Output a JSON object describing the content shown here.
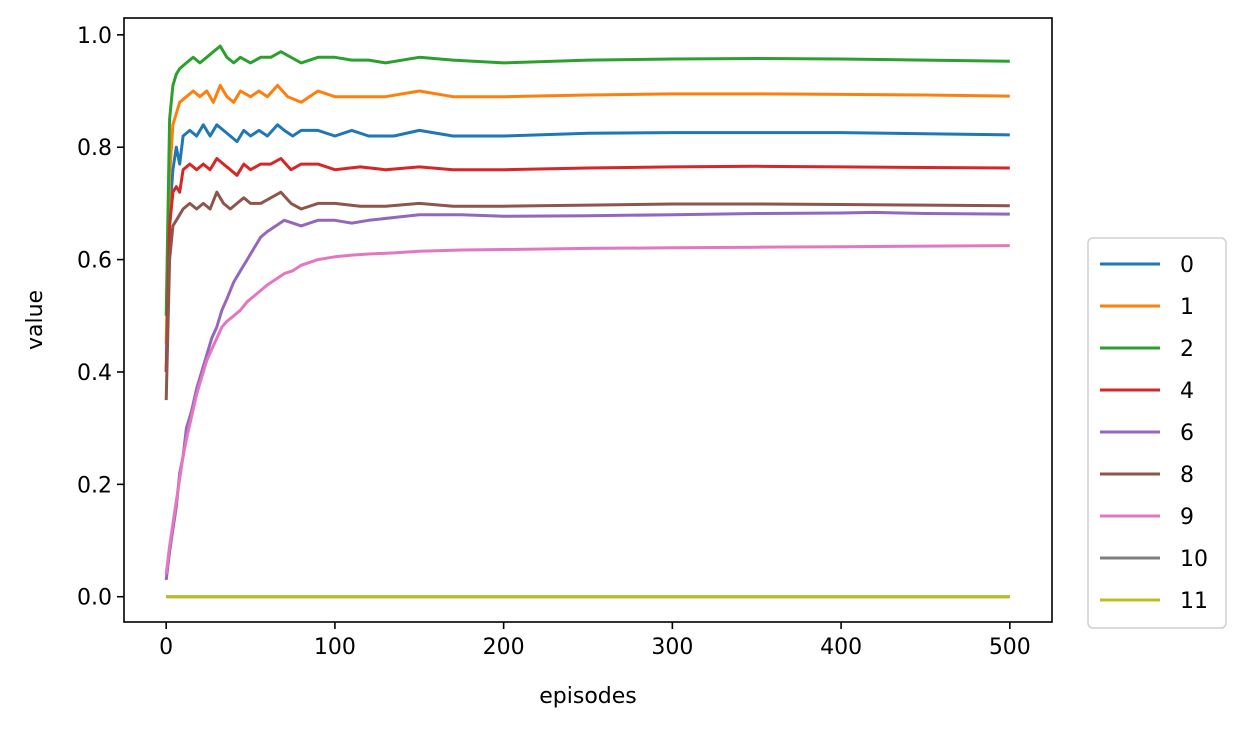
{
  "chart_data": {
    "type": "line",
    "title": "",
    "xlabel": "episodes",
    "ylabel": "value",
    "xlim": [
      -25,
      525
    ],
    "ylim": [
      -0.045,
      1.03
    ],
    "xticks": [
      0,
      100,
      200,
      300,
      400,
      500
    ],
    "yticks": [
      0.0,
      0.2,
      0.4,
      0.6,
      0.8,
      1.0
    ],
    "xtick_labels": [
      "0",
      "100",
      "200",
      "300",
      "400",
      "500"
    ],
    "ytick_labels": [
      "0.0",
      "0.2",
      "0.4",
      "0.6",
      "0.8",
      "1.0"
    ],
    "grid": false,
    "legend_position": "right-outside",
    "series": [
      {
        "name": "0",
        "color": "#1f77b4",
        "points": [
          [
            0,
            0.4
          ],
          [
            2,
            0.68
          ],
          [
            4,
            0.76
          ],
          [
            6,
            0.8
          ],
          [
            8,
            0.77
          ],
          [
            10,
            0.82
          ],
          [
            14,
            0.83
          ],
          [
            18,
            0.82
          ],
          [
            22,
            0.84
          ],
          [
            26,
            0.82
          ],
          [
            30,
            0.84
          ],
          [
            34,
            0.83
          ],
          [
            38,
            0.82
          ],
          [
            42,
            0.81
          ],
          [
            46,
            0.83
          ],
          [
            50,
            0.82
          ],
          [
            55,
            0.83
          ],
          [
            60,
            0.82
          ],
          [
            66,
            0.84
          ],
          [
            70,
            0.83
          ],
          [
            75,
            0.82
          ],
          [
            80,
            0.83
          ],
          [
            90,
            0.83
          ],
          [
            100,
            0.82
          ],
          [
            110,
            0.83
          ],
          [
            120,
            0.82
          ],
          [
            135,
            0.82
          ],
          [
            150,
            0.83
          ],
          [
            170,
            0.82
          ],
          [
            200,
            0.82
          ],
          [
            250,
            0.825
          ],
          [
            300,
            0.826
          ],
          [
            350,
            0.826
          ],
          [
            400,
            0.826
          ],
          [
            450,
            0.824
          ],
          [
            500,
            0.822
          ]
        ]
      },
      {
        "name": "1",
        "color": "#ff7f0e",
        "points": [
          [
            0,
            0.45
          ],
          [
            2,
            0.75
          ],
          [
            4,
            0.84
          ],
          [
            6,
            0.86
          ],
          [
            8,
            0.88
          ],
          [
            12,
            0.89
          ],
          [
            16,
            0.9
          ],
          [
            20,
            0.89
          ],
          [
            24,
            0.9
          ],
          [
            28,
            0.88
          ],
          [
            32,
            0.91
          ],
          [
            36,
            0.89
          ],
          [
            40,
            0.88
          ],
          [
            44,
            0.9
          ],
          [
            50,
            0.89
          ],
          [
            55,
            0.9
          ],
          [
            60,
            0.89
          ],
          [
            66,
            0.91
          ],
          [
            72,
            0.89
          ],
          [
            80,
            0.88
          ],
          [
            90,
            0.9
          ],
          [
            100,
            0.89
          ],
          [
            115,
            0.89
          ],
          [
            130,
            0.89
          ],
          [
            150,
            0.9
          ],
          [
            170,
            0.89
          ],
          [
            200,
            0.89
          ],
          [
            250,
            0.893
          ],
          [
            300,
            0.895
          ],
          [
            350,
            0.895
          ],
          [
            400,
            0.894
          ],
          [
            450,
            0.893
          ],
          [
            500,
            0.891
          ]
        ]
      },
      {
        "name": "2",
        "color": "#2ca02c",
        "points": [
          [
            0,
            0.5
          ],
          [
            2,
            0.85
          ],
          [
            4,
            0.91
          ],
          [
            6,
            0.93
          ],
          [
            8,
            0.94
          ],
          [
            12,
            0.95
          ],
          [
            16,
            0.96
          ],
          [
            20,
            0.95
          ],
          [
            24,
            0.96
          ],
          [
            28,
            0.97
          ],
          [
            32,
            0.98
          ],
          [
            36,
            0.96
          ],
          [
            40,
            0.95
          ],
          [
            44,
            0.96
          ],
          [
            50,
            0.95
          ],
          [
            56,
            0.96
          ],
          [
            62,
            0.96
          ],
          [
            68,
            0.97
          ],
          [
            74,
            0.96
          ],
          [
            80,
            0.95
          ],
          [
            90,
            0.96
          ],
          [
            100,
            0.96
          ],
          [
            110,
            0.955
          ],
          [
            120,
            0.955
          ],
          [
            130,
            0.95
          ],
          [
            150,
            0.96
          ],
          [
            170,
            0.955
          ],
          [
            200,
            0.95
          ],
          [
            250,
            0.955
          ],
          [
            300,
            0.957
          ],
          [
            350,
            0.958
          ],
          [
            400,
            0.957
          ],
          [
            450,
            0.955
          ],
          [
            500,
            0.953
          ]
        ]
      },
      {
        "name": "4",
        "color": "#d62728",
        "points": [
          [
            0,
            0.4
          ],
          [
            2,
            0.66
          ],
          [
            4,
            0.72
          ],
          [
            6,
            0.73
          ],
          [
            8,
            0.72
          ],
          [
            10,
            0.76
          ],
          [
            14,
            0.77
          ],
          [
            18,
            0.76
          ],
          [
            22,
            0.77
          ],
          [
            26,
            0.76
          ],
          [
            30,
            0.78
          ],
          [
            34,
            0.77
          ],
          [
            38,
            0.76
          ],
          [
            42,
            0.75
          ],
          [
            46,
            0.77
          ],
          [
            50,
            0.76
          ],
          [
            56,
            0.77
          ],
          [
            62,
            0.77
          ],
          [
            68,
            0.78
          ],
          [
            74,
            0.76
          ],
          [
            80,
            0.77
          ],
          [
            90,
            0.77
          ],
          [
            100,
            0.76
          ],
          [
            115,
            0.765
          ],
          [
            130,
            0.76
          ],
          [
            150,
            0.765
          ],
          [
            170,
            0.76
          ],
          [
            200,
            0.76
          ],
          [
            250,
            0.763
          ],
          [
            300,
            0.765
          ],
          [
            350,
            0.766
          ],
          [
            400,
            0.765
          ],
          [
            450,
            0.764
          ],
          [
            500,
            0.763
          ]
        ]
      },
      {
        "name": "6",
        "color": "#9467bd",
        "points": [
          [
            0,
            0.03
          ],
          [
            2,
            0.08
          ],
          [
            4,
            0.12
          ],
          [
            6,
            0.16
          ],
          [
            8,
            0.22
          ],
          [
            10,
            0.25
          ],
          [
            12,
            0.3
          ],
          [
            15,
            0.33
          ],
          [
            18,
            0.37
          ],
          [
            21,
            0.4
          ],
          [
            24,
            0.43
          ],
          [
            27,
            0.46
          ],
          [
            30,
            0.48
          ],
          [
            33,
            0.51
          ],
          [
            36,
            0.53
          ],
          [
            40,
            0.56
          ],
          [
            44,
            0.58
          ],
          [
            48,
            0.6
          ],
          [
            52,
            0.62
          ],
          [
            56,
            0.64
          ],
          [
            60,
            0.65
          ],
          [
            65,
            0.66
          ],
          [
            70,
            0.67
          ],
          [
            75,
            0.665
          ],
          [
            80,
            0.66
          ],
          [
            85,
            0.665
          ],
          [
            90,
            0.67
          ],
          [
            100,
            0.67
          ],
          [
            110,
            0.665
          ],
          [
            120,
            0.67
          ],
          [
            135,
            0.675
          ],
          [
            150,
            0.68
          ],
          [
            175,
            0.68
          ],
          [
            200,
            0.677
          ],
          [
            250,
            0.678
          ],
          [
            300,
            0.68
          ],
          [
            350,
            0.682
          ],
          [
            400,
            0.683
          ],
          [
            420,
            0.684
          ],
          [
            450,
            0.682
          ],
          [
            500,
            0.681
          ]
        ]
      },
      {
        "name": "8",
        "color": "#8c564b",
        "points": [
          [
            0,
            0.35
          ],
          [
            2,
            0.6
          ],
          [
            4,
            0.66
          ],
          [
            6,
            0.67
          ],
          [
            8,
            0.68
          ],
          [
            10,
            0.69
          ],
          [
            14,
            0.7
          ],
          [
            18,
            0.69
          ],
          [
            22,
            0.7
          ],
          [
            26,
            0.69
          ],
          [
            30,
            0.72
          ],
          [
            34,
            0.7
          ],
          [
            38,
            0.69
          ],
          [
            42,
            0.7
          ],
          [
            46,
            0.71
          ],
          [
            50,
            0.7
          ],
          [
            56,
            0.7
          ],
          [
            62,
            0.71
          ],
          [
            68,
            0.72
          ],
          [
            74,
            0.7
          ],
          [
            80,
            0.69
          ],
          [
            90,
            0.7
          ],
          [
            100,
            0.7
          ],
          [
            115,
            0.695
          ],
          [
            130,
            0.695
          ],
          [
            150,
            0.7
          ],
          [
            170,
            0.695
          ],
          [
            200,
            0.695
          ],
          [
            250,
            0.697
          ],
          [
            300,
            0.699
          ],
          [
            350,
            0.699
          ],
          [
            400,
            0.698
          ],
          [
            450,
            0.697
          ],
          [
            500,
            0.696
          ]
        ]
      },
      {
        "name": "9",
        "color": "#e377c2",
        "points": [
          [
            0,
            0.04
          ],
          [
            2,
            0.09
          ],
          [
            4,
            0.13
          ],
          [
            6,
            0.17
          ],
          [
            8,
            0.21
          ],
          [
            10,
            0.25
          ],
          [
            12,
            0.28
          ],
          [
            15,
            0.32
          ],
          [
            18,
            0.36
          ],
          [
            21,
            0.39
          ],
          [
            24,
            0.42
          ],
          [
            27,
            0.44
          ],
          [
            30,
            0.46
          ],
          [
            33,
            0.48
          ],
          [
            36,
            0.49
          ],
          [
            40,
            0.5
          ],
          [
            44,
            0.51
          ],
          [
            48,
            0.525
          ],
          [
            52,
            0.535
          ],
          [
            56,
            0.545
          ],
          [
            60,
            0.555
          ],
          [
            65,
            0.565
          ],
          [
            70,
            0.575
          ],
          [
            75,
            0.58
          ],
          [
            80,
            0.59
          ],
          [
            85,
            0.595
          ],
          [
            90,
            0.6
          ],
          [
            100,
            0.605
          ],
          [
            110,
            0.608
          ],
          [
            120,
            0.61
          ],
          [
            135,
            0.612
          ],
          [
            150,
            0.615
          ],
          [
            175,
            0.617
          ],
          [
            200,
            0.618
          ],
          [
            250,
            0.62
          ],
          [
            300,
            0.621
          ],
          [
            350,
            0.622
          ],
          [
            400,
            0.623
          ],
          [
            450,
            0.624
          ],
          [
            500,
            0.625
          ]
        ]
      },
      {
        "name": "10",
        "color": "#7f7f7f",
        "points": [
          [
            0,
            0.0
          ],
          [
            500,
            0.0
          ]
        ]
      },
      {
        "name": "11",
        "color": "#bcbd22",
        "points": [
          [
            0,
            0.0
          ],
          [
            500,
            0.0
          ]
        ]
      }
    ]
  }
}
